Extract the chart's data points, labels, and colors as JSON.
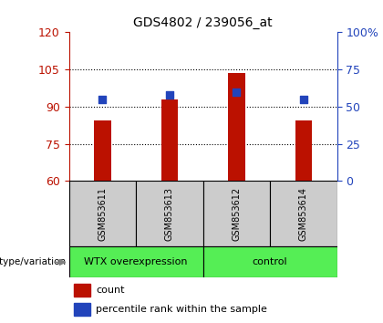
{
  "title": "GDS4802 / 239056_at",
  "samples": [
    "GSM853611",
    "GSM853613",
    "GSM853612",
    "GSM853614"
  ],
  "count_values": [
    84.5,
    93.0,
    103.5,
    84.5
  ],
  "percentile_values": [
    55,
    58,
    60,
    55
  ],
  "ylim_left": [
    60,
    120
  ],
  "ylim_right": [
    0,
    100
  ],
  "yticks_left": [
    60,
    75,
    90,
    105,
    120
  ],
  "yticks_right": [
    0,
    25,
    50,
    75,
    100
  ],
  "ytick_labels_right": [
    "0",
    "25",
    "50",
    "75",
    "100%"
  ],
  "bar_color": "#bb1100",
  "dot_color": "#2244bb",
  "group_color": "#55ee55",
  "sample_cell_color": "#cccccc",
  "legend_count_label": "count",
  "legend_pct_label": "percentile rank within the sample",
  "genotype_label": "genotype/variation",
  "bar_width": 0.25,
  "dot_size": 40,
  "grid_ticks": [
    75,
    90,
    105
  ]
}
